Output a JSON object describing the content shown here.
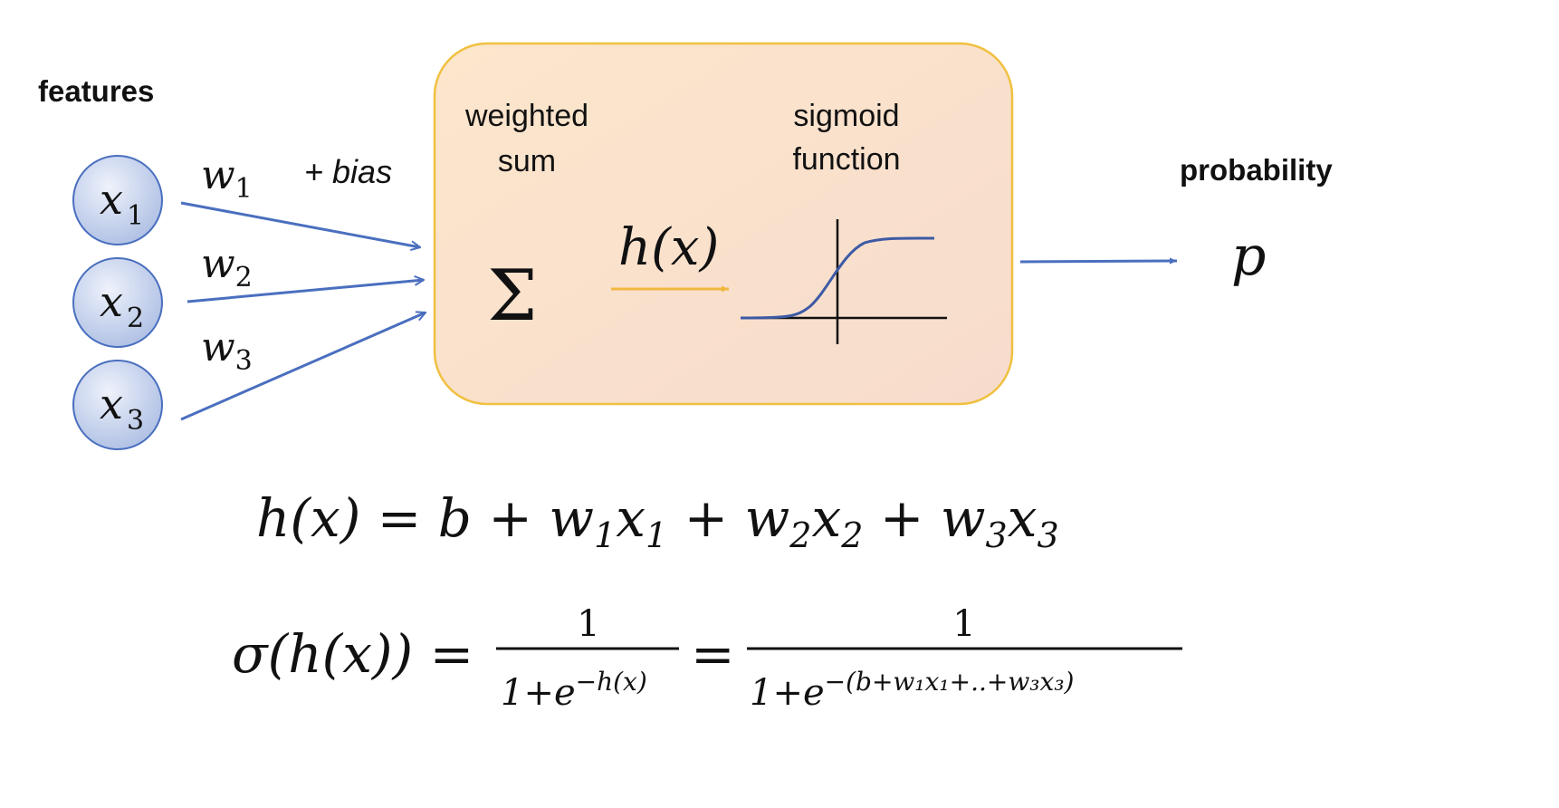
{
  "labels": {
    "features": "features",
    "probability": "probability",
    "bias": "+ bias",
    "weighted_sum_l1": "weighted",
    "weighted_sum_l2": "sum",
    "sigmoid_l1": "sigmoid",
    "sigmoid_l2": "function"
  },
  "nodes": [
    {
      "var": "x",
      "sub": "1"
    },
    {
      "var": "x",
      "sub": "2"
    },
    {
      "var": "x",
      "sub": "3"
    }
  ],
  "weights": [
    {
      "var": "w",
      "sub": "1"
    },
    {
      "var": "w",
      "sub": "2"
    },
    {
      "var": "w",
      "sub": "3"
    }
  ],
  "symbols": {
    "sum": "Σ",
    "h": "h",
    "paren_x": "(x)",
    "output": "p"
  },
  "formula1": {
    "lhs": "h(x) = ",
    "b": "b + ",
    "t1": "w",
    "t1s": "1",
    "t1x": "x",
    "t1xs": "1",
    "plus1": " + ",
    "t2": "w",
    "t2s": "2",
    "t2x": "x",
    "t2xs": "2",
    "plus2": " + ",
    "t3": "w",
    "t3s": "3",
    "t3x": "x",
    "t3xs": "3"
  },
  "formula2": {
    "lhs": "σ(h(x)) =",
    "num1": "1",
    "den1_base": "1+e",
    "den1_exp": "−h(x)",
    "eq": "=",
    "num2": "1",
    "den2_base": "1+e",
    "den2_exp": "−(b+w₁x₁+..+w₃x₃)"
  },
  "colors": {
    "arrow": "#4a6fbf",
    "box_border": "#f0c040",
    "box_fill": "#fbe3d0",
    "node_fill": "#c7d3ee",
    "node_border": "#4a6fbf",
    "h_arrow": "#f0b840",
    "sigmoid_curve": "#3d5aa5"
  }
}
